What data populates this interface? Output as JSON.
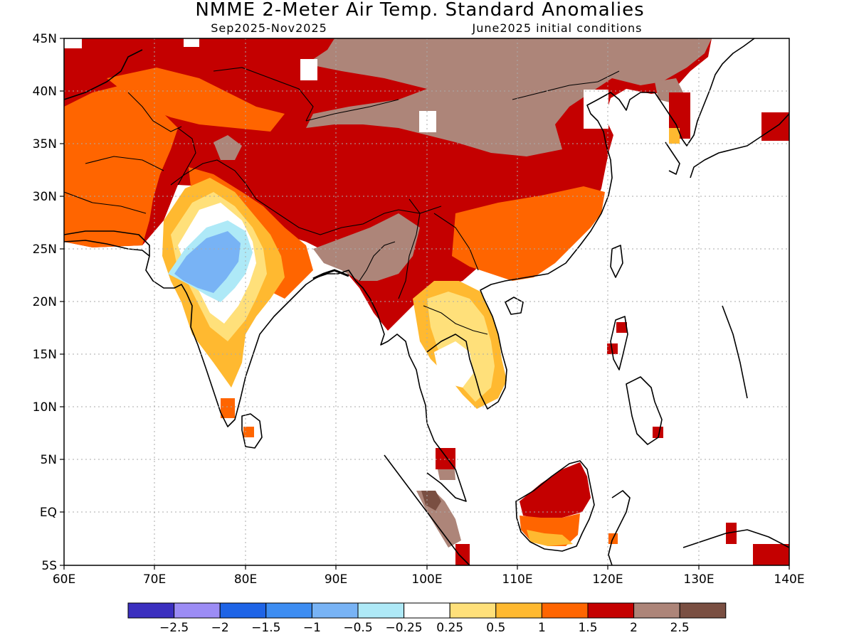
{
  "title": "NMME 2-Meter Air Temp. Standard Anomalies",
  "period": "Sep2025-Nov2025",
  "initial_conditions": "June2025 initial conditions",
  "axes": {
    "lon_ticks": [
      "60E",
      "70E",
      "80E",
      "90E",
      "100E",
      "110E",
      "120E",
      "130E",
      "140E"
    ],
    "lat_ticks": [
      "45N",
      "40N",
      "35N",
      "30N",
      "25N",
      "20N",
      "15N",
      "10N",
      "5N",
      "EQ",
      "5S"
    ],
    "lon_range": [
      60,
      140
    ],
    "lat_range": [
      -5,
      45
    ],
    "grid": "dotted"
  },
  "colorbar": {
    "colors": [
      "#3b2fbf",
      "#9c8cf5",
      "#1e64e6",
      "#3d8df2",
      "#78b3f5",
      "#aee9f7",
      "#ffffff",
      "#ffe07a",
      "#ffb930",
      "#ff6500",
      "#c40000",
      "#ad8579",
      "#7a4f42"
    ],
    "labels": [
      "-2.5",
      "-2",
      "-1.5",
      "-1",
      "-0.5",
      "-0.25",
      "0.25",
      "0.5",
      "1",
      "1.5",
      "2",
      "2.5"
    ]
  },
  "colors": {
    "land_outline": "#000000",
    "grid": "#aaaaaa"
  }
}
